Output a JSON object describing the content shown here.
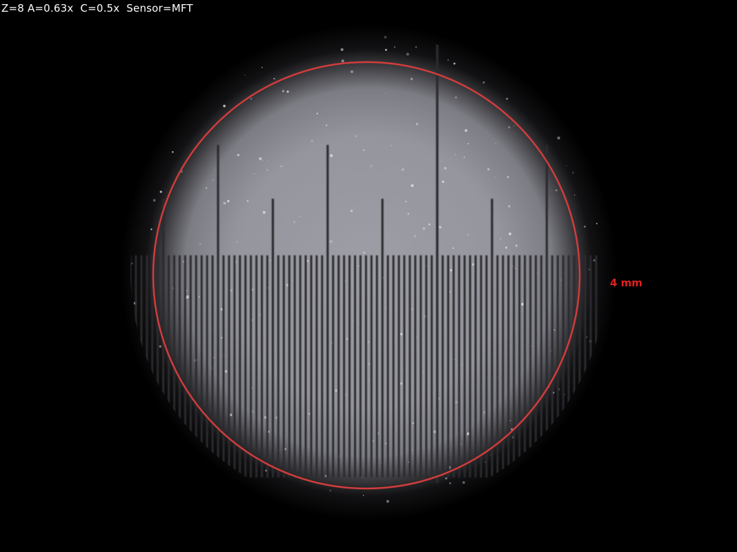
{
  "overlay": {
    "params_text": "Z=8 A=0.63x  C=0.5x  Sensor=MFT",
    "fov_label": "4 mm",
    "fov_color": "#e02020"
  },
  "image": {
    "background_color": "#000000",
    "field_color": "#9b9ba3",
    "scale_line_color": "#2b2b2f"
  }
}
